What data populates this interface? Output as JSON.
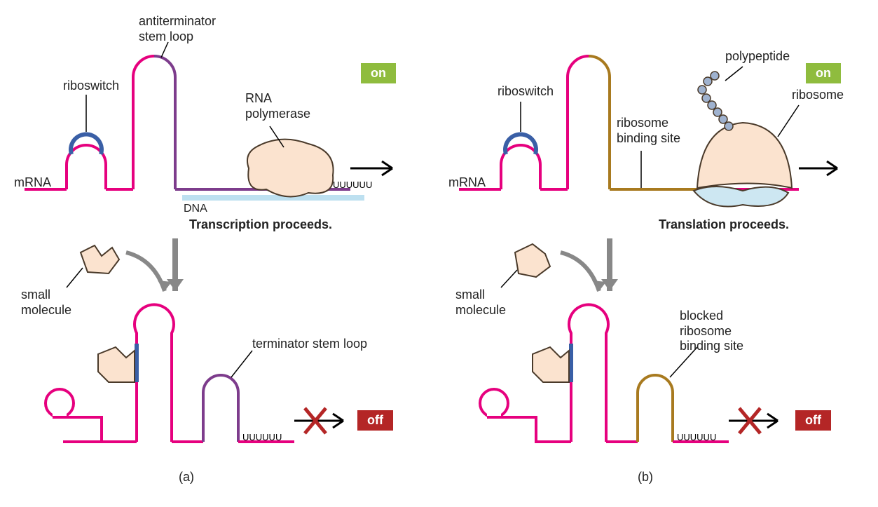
{
  "colors": {
    "mrna_pink": "#e6007e",
    "riboswitch_blue": "#3a5fa6",
    "purple": "#7d3c8c",
    "brown": "#a87a1f",
    "dna_blue": "#bde0f0",
    "peach_fill": "#fbe3cf",
    "peach_stroke": "#4a3a2a",
    "ribosome_small": "#cde7f2",
    "polypep": "#9fb2cf",
    "on_badge": "#8fbc3e",
    "off_badge": "#b42626",
    "gray_arrow": "#888888"
  },
  "panel_a": {
    "labels": {
      "antiterminator": "antiterminator\nstem loop",
      "riboswitch": "riboswitch",
      "rna_polymerase": "RNA\npolymerase",
      "mrna": "mRNA",
      "dna": "DNA",
      "transcription": "Transcription proceeds.",
      "small_molecule": "small\nmolecule",
      "terminator": "terminator stem loop",
      "panel_id": "(a)",
      "on": "on",
      "off": "off",
      "poly_u": "UUUUUU"
    }
  },
  "panel_b": {
    "labels": {
      "riboswitch": "riboswitch",
      "polypeptide": "polypeptide",
      "ribosome": "ribosome",
      "rbs": "ribosome\nbinding site",
      "mrna": "mRNA",
      "translation": "Translation proceeds.",
      "small_molecule": "small\nmolecule",
      "blocked_rbs": "blocked\nribosome\nbinding site",
      "panel_id": "(b)",
      "on": "on",
      "off": "off",
      "poly_u": "UUUUUU"
    }
  }
}
